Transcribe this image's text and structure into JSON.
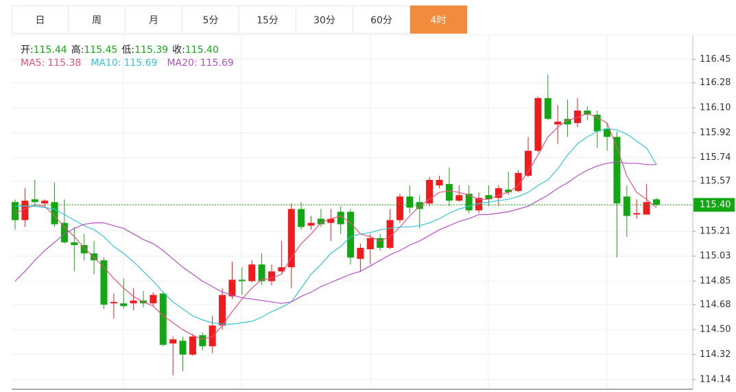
{
  "tabs": [
    "日",
    "周",
    "月",
    "5分",
    "15分",
    "30分",
    "60分",
    "4时"
  ],
  "active_tab": 7,
  "chart_data": {
    "type": "candlestick",
    "info": {
      "names": [
        "开:",
        "高:",
        "低:",
        "收:"
      ],
      "values": [
        115.44,
        115.45,
        115.39,
        115.4
      ],
      "value_labels": [
        "115.44",
        "115.45",
        "115.39",
        "115.40"
      ]
    },
    "up_color": "#ee1c1c",
    "down_color": "#13a813",
    "ylim": [
      114.07,
      116.62
    ],
    "yticks": [
      116.45,
      116.28,
      {
        "value": 116.1,
        "label": "116.10"
      },
      115.92,
      115.74,
      115.57,
      115.21,
      115.03,
      114.85,
      114.68,
      {
        "value": 114.5,
        "label": "114.50"
      },
      114.32,
      114.14
    ],
    "grid": true,
    "last_price": {
      "value": 115.4,
      "label": "115.40"
    },
    "ohlc": [
      [
        115.42,
        115.44,
        115.22,
        115.29
      ],
      [
        115.29,
        115.52,
        115.24,
        115.43
      ],
      [
        115.44,
        115.58,
        115.39,
        115.42
      ],
      [
        115.41,
        115.44,
        115.39,
        115.43
      ],
      [
        115.42,
        115.56,
        115.24,
        115.26
      ],
      [
        115.27,
        115.44,
        115.12,
        115.13
      ],
      [
        115.13,
        115.24,
        114.92,
        115.11
      ],
      [
        115.11,
        115.19,
        115.0,
        115.05
      ],
      [
        115.05,
        115.14,
        114.9,
        115.0
      ],
      [
        115.0,
        115.02,
        114.65,
        114.68
      ],
      [
        114.69,
        114.76,
        114.58,
        114.7
      ],
      [
        114.69,
        114.87,
        114.65,
        114.67
      ],
      [
        114.69,
        114.8,
        114.64,
        114.71
      ],
      [
        114.71,
        114.78,
        114.66,
        114.69
      ],
      [
        114.69,
        114.77,
        114.67,
        114.75
      ],
      [
        114.76,
        114.77,
        114.38,
        114.39
      ],
      [
        114.4,
        114.45,
        114.17,
        114.43
      ],
      [
        114.42,
        114.45,
        114.2,
        114.32
      ],
      [
        114.32,
        114.47,
        114.31,
        114.45
      ],
      [
        114.46,
        114.48,
        114.35,
        114.38
      ],
      [
        114.38,
        114.6,
        114.33,
        114.53
      ],
      [
        114.53,
        114.8,
        114.5,
        114.75
      ],
      [
        114.74,
        114.99,
        114.72,
        114.86
      ],
      [
        114.86,
        114.95,
        114.75,
        114.85
      ],
      [
        114.85,
        115.0,
        114.84,
        114.97
      ],
      [
        114.97,
        115.05,
        114.82,
        114.85
      ],
      [
        114.85,
        114.97,
        114.82,
        114.92
      ],
      [
        114.92,
        115.14,
        114.91,
        114.95
      ],
      [
        114.95,
        115.41,
        114.8,
        115.37
      ],
      [
        115.37,
        115.42,
        115.22,
        115.24
      ],
      [
        115.25,
        115.32,
        115.22,
        115.27
      ],
      [
        115.3,
        115.37,
        115.24,
        115.26
      ],
      [
        115.27,
        115.37,
        115.14,
        115.3
      ],
      [
        115.35,
        115.39,
        115.19,
        115.26
      ],
      [
        115.35,
        115.37,
        114.97,
        115.02
      ],
      [
        115.01,
        115.12,
        114.92,
        115.09
      ],
      [
        115.08,
        115.19,
        114.97,
        115.16
      ],
      [
        115.16,
        115.19,
        115.07,
        115.09
      ],
      [
        115.09,
        115.37,
        115.08,
        115.29
      ],
      [
        115.29,
        115.48,
        115.27,
        115.46
      ],
      [
        115.46,
        115.54,
        115.34,
        115.38
      ],
      [
        115.42,
        115.47,
        115.23,
        115.37
      ],
      [
        115.41,
        115.6,
        115.39,
        115.58
      ],
      [
        115.54,
        115.61,
        115.52,
        115.58
      ],
      [
        115.55,
        115.67,
        115.39,
        115.43
      ],
      [
        115.43,
        115.54,
        115.42,
        115.47
      ],
      [
        115.48,
        115.54,
        115.34,
        115.36
      ],
      [
        115.36,
        115.49,
        115.34,
        115.45
      ],
      [
        115.47,
        115.54,
        115.39,
        115.44
      ],
      [
        115.45,
        115.54,
        115.39,
        115.52
      ],
      [
        115.51,
        115.64,
        115.47,
        115.49
      ],
      [
        115.5,
        115.65,
        115.49,
        115.63
      ],
      [
        115.61,
        115.89,
        115.6,
        115.79
      ],
      [
        115.79,
        116.18,
        115.78,
        116.17
      ],
      [
        116.17,
        116.34,
        116.01,
        116.02
      ],
      [
        115.98,
        116.12,
        115.84,
        116.0
      ],
      [
        116.02,
        116.16,
        115.89,
        115.98
      ],
      [
        115.99,
        116.17,
        115.96,
        116.08
      ],
      [
        116.08,
        116.11,
        116.01,
        116.05
      ],
      [
        116.05,
        116.08,
        115.81,
        115.93
      ],
      [
        115.95,
        115.99,
        115.79,
        115.89
      ],
      [
        115.89,
        115.93,
        115.02,
        115.41
      ],
      [
        115.46,
        115.54,
        115.17,
        115.32
      ],
      [
        115.33,
        115.44,
        115.3,
        115.34
      ],
      [
        115.33,
        115.55,
        115.33,
        115.42
      ],
      [
        115.44,
        115.45,
        115.39,
        115.4
      ]
    ],
    "series": [
      {
        "name": "MA5:",
        "color": "#e8507a",
        "current": 115.38,
        "values": [
          115.34,
          115.37,
          115.4,
          115.39,
          115.32,
          115.24,
          115.17,
          115.09,
          115.02,
          114.95,
          114.87,
          114.8,
          114.74,
          114.7,
          114.67,
          114.6,
          114.55,
          114.5,
          114.46,
          114.43,
          114.45,
          114.53,
          114.63,
          114.72,
          114.8,
          114.86,
          114.87,
          114.9,
          115.02,
          115.12,
          115.19,
          115.27,
          115.3,
          115.32,
          115.27,
          115.19,
          115.17,
          115.14,
          115.17,
          115.24,
          115.32,
          115.39,
          115.44,
          115.49,
          115.5,
          115.49,
          115.47,
          115.44,
          115.44,
          115.47,
          115.49,
          115.54,
          115.64,
          115.76,
          115.89,
          115.96,
          116.01,
          116.03,
          116.06,
          116.03,
          115.99,
          115.81,
          115.61,
          115.49,
          115.44,
          115.38
        ]
      },
      {
        "name": "MA10:",
        "color": "#35c3d8",
        "current": 115.69,
        "values": [
          115.39,
          115.39,
          115.39,
          115.38,
          115.37,
          115.33,
          115.29,
          115.25,
          115.22,
          115.17,
          115.1,
          115.05,
          114.99,
          114.92,
          114.85,
          114.77,
          114.7,
          114.65,
          114.6,
          114.57,
          114.55,
          114.54,
          114.54,
          114.55,
          114.56,
          114.59,
          114.63,
          114.66,
          114.7,
          114.8,
          114.9,
          114.97,
          115.05,
          115.1,
          115.17,
          115.19,
          115.2,
          115.22,
          115.23,
          115.24,
          115.24,
          115.25,
          115.27,
          115.3,
          115.34,
          115.37,
          115.39,
          115.41,
          115.42,
          115.43,
          115.44,
          115.46,
          115.49,
          115.54,
          115.58,
          115.66,
          115.76,
          115.84,
          115.89,
          115.93,
          115.95,
          115.94,
          115.91,
          115.86,
          115.81,
          115.69
        ]
      },
      {
        "name": "MA20:",
        "color": "#b44fc6",
        "current": 115.69,
        "values": [
          114.85,
          114.92,
          115.0,
          115.07,
          115.13,
          115.19,
          115.23,
          115.26,
          115.27,
          115.27,
          115.25,
          115.23,
          115.19,
          115.15,
          115.12,
          115.07,
          115.01,
          114.95,
          114.9,
          114.85,
          114.81,
          114.77,
          114.75,
          114.73,
          114.72,
          114.71,
          114.7,
          114.69,
          114.7,
          114.74,
          114.77,
          114.81,
          114.84,
          114.87,
          114.9,
          114.92,
          114.96,
          115.0,
          115.04,
          115.07,
          115.11,
          115.14,
          115.18,
          115.22,
          115.25,
          115.28,
          115.3,
          115.33,
          115.33,
          115.34,
          115.35,
          115.37,
          115.39,
          115.43,
          115.47,
          115.52,
          115.56,
          115.61,
          115.65,
          115.68,
          115.7,
          115.71,
          115.7,
          115.7,
          115.69,
          115.69
        ]
      }
    ]
  }
}
